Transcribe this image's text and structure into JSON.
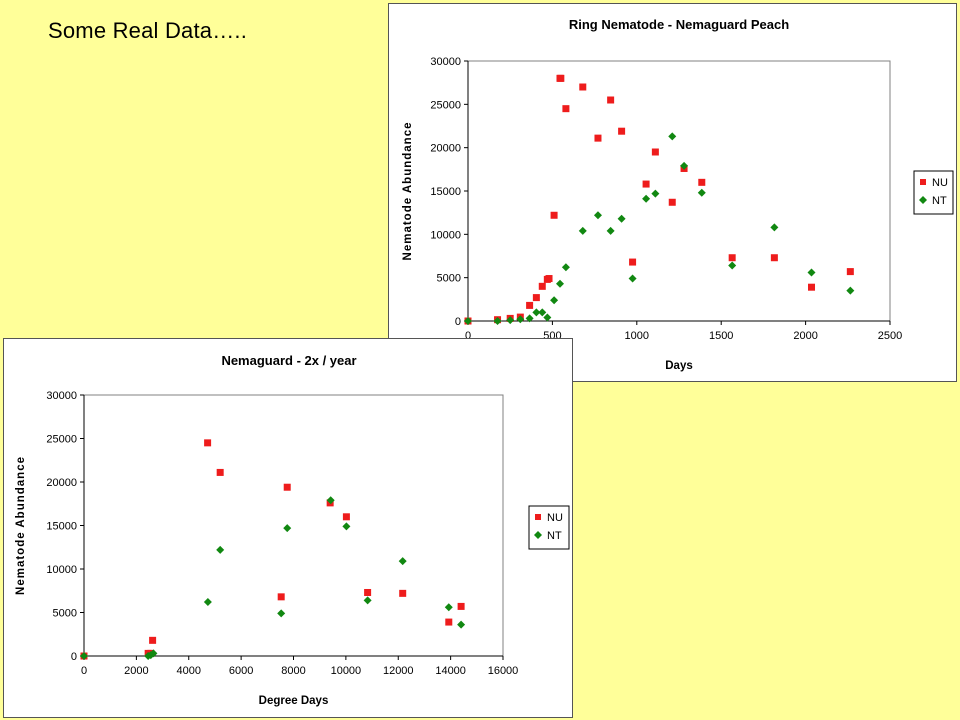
{
  "slide": {
    "title": "Some Real Data….."
  },
  "colors": {
    "NU": "#ee1c1c",
    "NT": "#118811",
    "plot_area_bg": "#ffffff",
    "slide_bg": "#ffff99"
  },
  "chart_data": [
    {
      "type": "scatter",
      "title": "Ring Nematode - Nemaguard Peach",
      "xlabel": "Days",
      "ylabel": "Nematode Abundance",
      "xlim": [
        0,
        2500
      ],
      "ylim": [
        0,
        30000
      ],
      "xticks": [
        0,
        500,
        1000,
        1500,
        2000,
        2500
      ],
      "yticks": [
        0,
        5000,
        10000,
        15000,
        20000,
        25000,
        30000
      ],
      "grid": false,
      "legend_position": "right",
      "series": [
        {
          "name": "NU",
          "marker": "square",
          "points": [
            [
              0,
              0
            ],
            [
              175,
              150
            ],
            [
              250,
              300
            ],
            [
              310,
              450
            ],
            [
              365,
              1800
            ],
            [
              405,
              2700
            ],
            [
              440,
              4000
            ],
            [
              470,
              4800
            ],
            [
              480,
              4900
            ],
            [
              510,
              12200
            ],
            [
              545,
              28000
            ],
            [
              550,
              28000
            ],
            [
              580,
              24500
            ],
            [
              680,
              27000
            ],
            [
              770,
              21100
            ],
            [
              845,
              25500
            ],
            [
              910,
              21900
            ],
            [
              975,
              6800
            ],
            [
              1055,
              15800
            ],
            [
              1110,
              19500
            ],
            [
              1210,
              13700
            ],
            [
              1280,
              17600
            ],
            [
              1385,
              16000
            ],
            [
              1565,
              7300
            ],
            [
              1815,
              7300
            ],
            [
              2035,
              3900
            ],
            [
              2265,
              5700
            ]
          ]
        },
        {
          "name": "NT",
          "marker": "diamond",
          "points": [
            [
              0,
              0
            ],
            [
              175,
              0
            ],
            [
              250,
              100
            ],
            [
              310,
              200
            ],
            [
              365,
              300
            ],
            [
              405,
              1000
            ],
            [
              440,
              1000
            ],
            [
              470,
              400
            ],
            [
              510,
              2400
            ],
            [
              545,
              4300
            ],
            [
              580,
              6200
            ],
            [
              680,
              10400
            ],
            [
              770,
              12200
            ],
            [
              845,
              10400
            ],
            [
              910,
              11800
            ],
            [
              975,
              4900
            ],
            [
              1055,
              14100
            ],
            [
              1110,
              14700
            ],
            [
              1210,
              21300
            ],
            [
              1280,
              17900
            ],
            [
              1385,
              14800
            ],
            [
              1565,
              6400
            ],
            [
              1815,
              10800
            ],
            [
              2035,
              5600
            ],
            [
              2265,
              3500
            ]
          ]
        }
      ]
    },
    {
      "type": "scatter",
      "title": "Nemaguard - 2x / year",
      "xlabel": "Degree Days",
      "ylabel": "Nematode Abundance",
      "xlim": [
        0,
        16000
      ],
      "ylim": [
        0,
        30000
      ],
      "xticks": [
        0,
        2000,
        4000,
        6000,
        8000,
        10000,
        12000,
        14000,
        16000
      ],
      "yticks": [
        0,
        5000,
        10000,
        15000,
        20000,
        25000,
        30000
      ],
      "grid": false,
      "legend_position": "right",
      "series": [
        {
          "name": "NU",
          "marker": "square",
          "points": [
            [
              0,
              0
            ],
            [
              2450,
              300
            ],
            [
              2550,
              300
            ],
            [
              2620,
              1800
            ],
            [
              4720,
              24500
            ],
            [
              5200,
              21100
            ],
            [
              7530,
              6800
            ],
            [
              7760,
              19400
            ],
            [
              9400,
              17600
            ],
            [
              10020,
              16000
            ],
            [
              10830,
              7300
            ],
            [
              12170,
              7200
            ],
            [
              13930,
              3900
            ],
            [
              14400,
              5700
            ]
          ]
        },
        {
          "name": "NT",
          "marker": "diamond",
          "points": [
            [
              0,
              0
            ],
            [
              2450,
              0
            ],
            [
              2550,
              100
            ],
            [
              2650,
              300
            ],
            [
              4730,
              6200
            ],
            [
              5200,
              12200
            ],
            [
              7530,
              4900
            ],
            [
              7760,
              14700
            ],
            [
              9420,
              17900
            ],
            [
              10020,
              14900
            ],
            [
              10830,
              6400
            ],
            [
              12170,
              10900
            ],
            [
              13930,
              5600
            ],
            [
              14400,
              3600
            ]
          ]
        }
      ]
    }
  ]
}
